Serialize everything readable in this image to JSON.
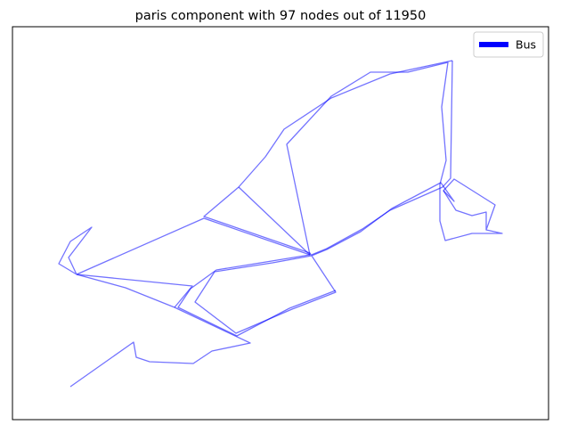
{
  "title": "paris component with 97 nodes out of 11950",
  "legend": {
    "label": "Bus",
    "color": "#0000ff",
    "placement": "upper-right"
  },
  "network": {
    "edge_color": "#0000ff",
    "edge_opacity": 0.55,
    "paths": [
      [
        [
          79,
          434
        ],
        [
          150,
          384
        ],
        [
          153,
          401
        ],
        [
          168,
          406
        ],
        [
          217,
          408
        ],
        [
          238,
          394
        ],
        [
          281,
          385
        ],
        [
          196,
          345
        ],
        [
          141,
          323
        ],
        [
          86,
          308
        ],
        [
          66,
          296
        ],
        [
          79,
          271
        ],
        [
          103,
          255
        ],
        [
          77,
          289
        ],
        [
          86,
          308
        ],
        [
          229,
          245
        ],
        [
          348,
          286
        ],
        [
          322,
          162
        ],
        [
          372,
          108
        ],
        [
          416,
          81
        ],
        [
          458,
          81
        ],
        [
          503,
          70
        ],
        [
          496,
          120
        ],
        [
          501,
          180
        ],
        [
          494,
          207
        ],
        [
          494,
          248
        ],
        [
          500,
          270
        ],
        [
          530,
          262
        ],
        [
          564,
          262
        ],
        [
          546,
          258
        ],
        [
          556,
          230
        ],
        [
          510,
          201
        ],
        [
          498,
          214
        ],
        [
          512,
          236
        ],
        [
          530,
          242
        ],
        [
          546,
          238
        ],
        [
          546,
          258
        ]
      ],
      [
        [
          508,
          68
        ],
        [
          438,
          83
        ],
        [
          372,
          110
        ],
        [
          319,
          145
        ],
        [
          298,
          176
        ],
        [
          268,
          210
        ],
        [
          229,
          243
        ],
        [
          348,
          284
        ],
        [
          377,
          328
        ],
        [
          328,
          347
        ],
        [
          265,
          374
        ],
        [
          219,
          339
        ],
        [
          241,
          305
        ],
        [
          306,
          295
        ],
        [
          350,
          287
        ],
        [
          367,
          280
        ],
        [
          405,
          260
        ],
        [
          440,
          234
        ],
        [
          495,
          205
        ],
        [
          510,
          226
        ],
        [
          498,
          214
        ]
      ],
      [
        [
          86,
          308
        ],
        [
          216,
          321
        ],
        [
          196,
          345
        ]
      ],
      [
        [
          268,
          210
        ],
        [
          348,
          286
        ]
      ],
      [
        [
          350,
          286
        ],
        [
          367,
          279
        ],
        [
          407,
          257
        ],
        [
          438,
          236
        ],
        [
          497,
          210
        ],
        [
          506,
          200
        ],
        [
          508,
          68
        ]
      ],
      [
        [
          377,
          326
        ],
        [
          325,
          346
        ],
        [
          266,
          377
        ],
        [
          200,
          345
        ],
        [
          214,
          324
        ],
        [
          243,
          303
        ],
        [
          305,
          293
        ],
        [
          348,
          286
        ]
      ]
    ]
  }
}
